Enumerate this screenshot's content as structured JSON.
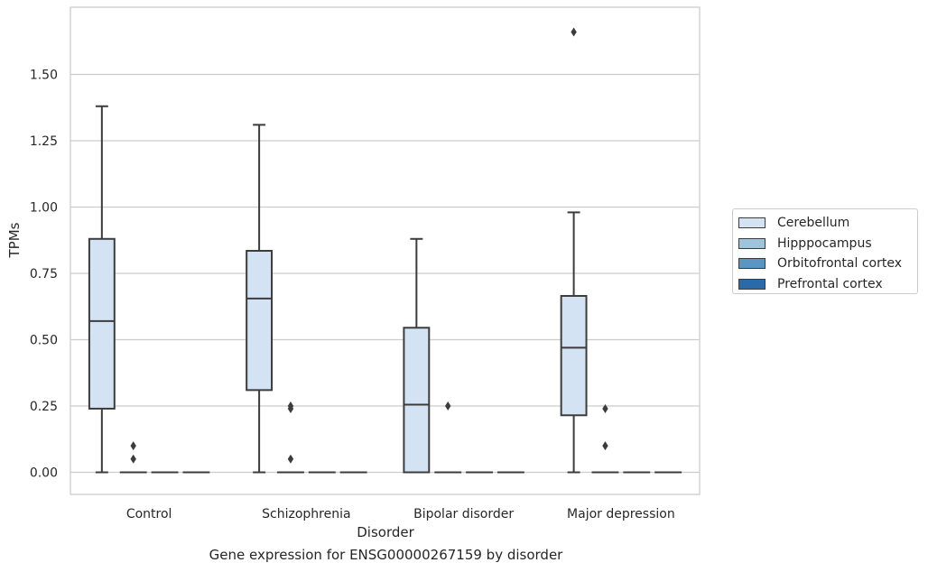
{
  "chart_data": {
    "type": "box",
    "caption": "Gene expression for ENSG00000267159 by disorder",
    "xlabel": "Disorder",
    "ylabel": "TPMs",
    "ylim": [
      -0.08,
      1.75
    ],
    "yticks": [
      0.0,
      0.25,
      0.5,
      0.75,
      1.0,
      1.25,
      1.5
    ],
    "ytick_labels": [
      "0.00",
      "0.25",
      "0.50",
      "0.75",
      "1.00",
      "1.25",
      "1.50"
    ],
    "grid": true,
    "legend_position": "right",
    "categories": [
      "Control",
      "Schizophrenia",
      "Bipolar disorder",
      "Major depression"
    ],
    "series": [
      {
        "name": "Cerebellum",
        "color": "#d4e3f3",
        "boxes": [
          {
            "whislo": 0.0,
            "q1": 0.24,
            "med": 0.57,
            "q3": 0.88,
            "whishi": 1.38,
            "fliers": []
          },
          {
            "whislo": 0.0,
            "q1": 0.31,
            "med": 0.655,
            "q3": 0.835,
            "whishi": 1.31,
            "fliers": []
          },
          {
            "whislo": 0.0,
            "q1": 0.0,
            "med": 0.255,
            "q3": 0.545,
            "whishi": 0.88,
            "fliers": []
          },
          {
            "whislo": 0.0,
            "q1": 0.215,
            "med": 0.47,
            "q3": 0.665,
            "whishi": 0.98,
            "fliers": [
              1.66
            ]
          }
        ]
      },
      {
        "name": "Hipppocampus",
        "color": "#9dc3dd",
        "boxes": [
          {
            "whislo": 0.0,
            "q1": 0.0,
            "med": 0.0,
            "q3": 0.0,
            "whishi": 0.0,
            "fliers": [
              0.1,
              0.05
            ]
          },
          {
            "whislo": 0.0,
            "q1": 0.0,
            "med": 0.0,
            "q3": 0.0,
            "whishi": 0.0,
            "fliers": [
              0.25,
              0.24,
              0.05
            ]
          },
          {
            "whislo": 0.0,
            "q1": 0.0,
            "med": 0.0,
            "q3": 0.0,
            "whishi": 0.0,
            "fliers": [
              0.25
            ]
          },
          {
            "whislo": 0.0,
            "q1": 0.0,
            "med": 0.0,
            "q3": 0.0,
            "whishi": 0.0,
            "fliers": [
              0.24,
              0.1
            ]
          }
        ]
      },
      {
        "name": "Orbitofrontal cortex",
        "color": "#5a96c4",
        "boxes": [
          {
            "whislo": 0.0,
            "q1": 0.0,
            "med": 0.0,
            "q3": 0.0,
            "whishi": 0.0,
            "fliers": []
          },
          {
            "whislo": 0.0,
            "q1": 0.0,
            "med": 0.0,
            "q3": 0.0,
            "whishi": 0.0,
            "fliers": []
          },
          {
            "whislo": 0.0,
            "q1": 0.0,
            "med": 0.0,
            "q3": 0.0,
            "whishi": 0.0,
            "fliers": []
          },
          {
            "whislo": 0.0,
            "q1": 0.0,
            "med": 0.0,
            "q3": 0.0,
            "whishi": 0.0,
            "fliers": []
          }
        ]
      },
      {
        "name": "Prefrontal cortex",
        "color": "#2a6aa9",
        "boxes": [
          {
            "whislo": 0.0,
            "q1": 0.0,
            "med": 0.0,
            "q3": 0.0,
            "whishi": 0.0,
            "fliers": []
          },
          {
            "whislo": 0.0,
            "q1": 0.0,
            "med": 0.0,
            "q3": 0.0,
            "whishi": 0.0,
            "fliers": []
          },
          {
            "whislo": 0.0,
            "q1": 0.0,
            "med": 0.0,
            "q3": 0.0,
            "whishi": 0.0,
            "fliers": []
          },
          {
            "whislo": 0.0,
            "q1": 0.0,
            "med": 0.0,
            "q3": 0.0,
            "whishi": 0.0,
            "fliers": []
          }
        ]
      }
    ]
  }
}
